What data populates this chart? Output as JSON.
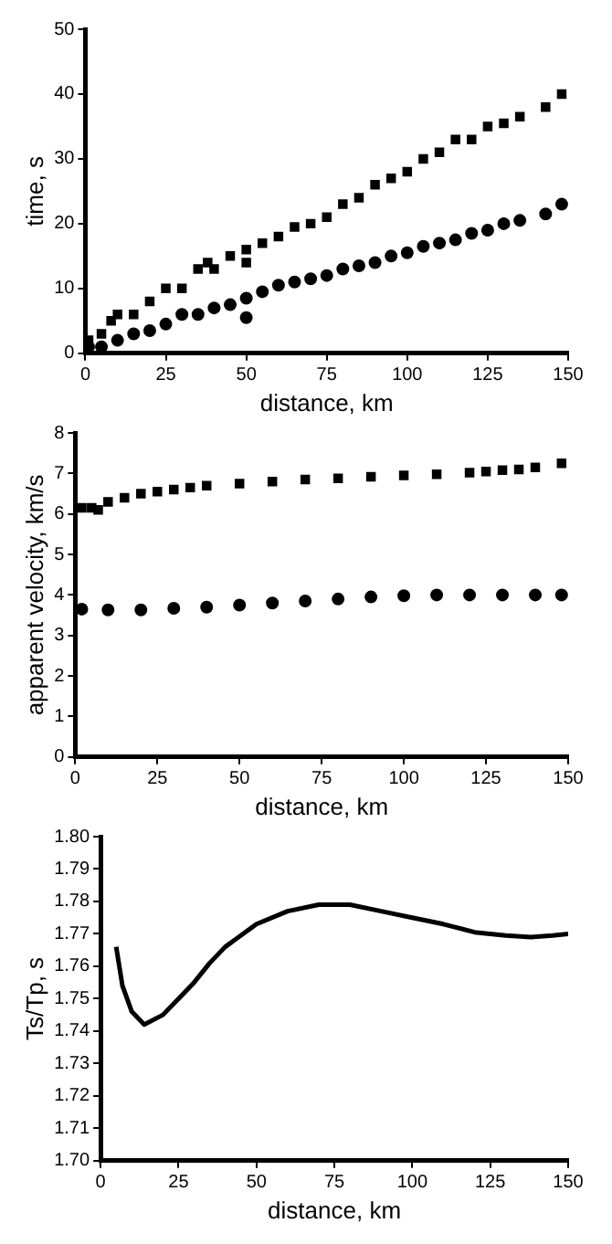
{
  "chart_data": [
    {
      "type": "scatter",
      "xlabel": "distance, km",
      "ylabel": "time, s",
      "xlim": [
        0,
        150
      ],
      "xticks": [
        0,
        25,
        50,
        75,
        100,
        125,
        150
      ],
      "ylim": [
        0,
        50
      ],
      "yticks": [
        0,
        10,
        20,
        30,
        40,
        50
      ],
      "grid": false,
      "legend": false,
      "series": [
        {
          "color": "#000000",
          "marker": "square",
          "x": [
            1,
            5,
            8,
            10,
            15,
            20,
            25,
            30,
            35,
            38,
            40,
            45,
            50,
            50,
            55,
            60,
            65,
            70,
            75,
            80,
            85,
            90,
            95,
            100,
            105,
            110,
            115,
            120,
            125,
            130,
            135,
            143,
            148
          ],
          "values": [
            2,
            3,
            5,
            6,
            6,
            8,
            10,
            10,
            13,
            14,
            13,
            15,
            16,
            14,
            17,
            18,
            19.5,
            20,
            21,
            23,
            24,
            26,
            27,
            28,
            30,
            31,
            33,
            33,
            35,
            35.5,
            36.5,
            38,
            40
          ]
        },
        {
          "color": "#000000",
          "marker": "circle",
          "x": [
            1,
            5,
            10,
            15,
            20,
            25,
            30,
            35,
            40,
            45,
            50,
            50,
            55,
            60,
            65,
            70,
            75,
            80,
            85,
            90,
            95,
            100,
            105,
            110,
            115,
            120,
            125,
            130,
            135,
            143,
            148
          ],
          "values": [
            1,
            1,
            2,
            3,
            3.5,
            4.5,
            6,
            6,
            7,
            7.5,
            8.5,
            5.5,
            9.5,
            10.5,
            11,
            11.5,
            12,
            13,
            13.5,
            14,
            15,
            15.5,
            16.5,
            17,
            17.5,
            18.5,
            19,
            20,
            20.5,
            21.5,
            23
          ]
        }
      ]
    },
    {
      "type": "scatter",
      "xlabel": "distance, km",
      "ylabel": "apparent velocity, km/s",
      "xlim": [
        0,
        150
      ],
      "xticks": [
        0,
        25,
        50,
        75,
        100,
        125,
        150
      ],
      "ylim": [
        0,
        8
      ],
      "yticks": [
        0,
        1,
        2,
        3,
        4,
        5,
        6,
        7,
        8
      ],
      "grid": false,
      "legend": false,
      "series": [
        {
          "color": "#000000",
          "marker": "square",
          "x": [
            2,
            5,
            7,
            10,
            15,
            20,
            25,
            30,
            35,
            40,
            50,
            60,
            70,
            80,
            90,
            100,
            110,
            120,
            125,
            130,
            135,
            140,
            148
          ],
          "values": [
            6.15,
            6.15,
            6.1,
            6.3,
            6.4,
            6.5,
            6.55,
            6.6,
            6.65,
            6.7,
            6.75,
            6.8,
            6.85,
            6.88,
            6.92,
            6.95,
            6.98,
            7.02,
            7.05,
            7.08,
            7.1,
            7.15,
            7.25
          ]
        },
        {
          "color": "#000000",
          "marker": "circle",
          "x": [
            2,
            10,
            20,
            30,
            40,
            50,
            60,
            70,
            80,
            90,
            100,
            110,
            120,
            130,
            140,
            148
          ],
          "values": [
            3.65,
            3.63,
            3.63,
            3.67,
            3.7,
            3.75,
            3.8,
            3.85,
            3.9,
            3.95,
            3.98,
            4.0,
            4.0,
            4.0,
            4.0,
            4.0
          ]
        }
      ]
    },
    {
      "type": "line",
      "xlabel": "distance, km",
      "ylabel": "Ts/Tp, s",
      "xlim": [
        0,
        150
      ],
      "xticks": [
        0,
        25,
        50,
        75,
        100,
        125,
        150
      ],
      "ylim": [
        1.7,
        1.8
      ],
      "yticks": [
        {
          "value": 1.7,
          "label": "1.70"
        },
        {
          "value": 1.71,
          "label": "1.71"
        },
        {
          "value": 1.72,
          "label": "1.72"
        },
        {
          "value": 1.73,
          "label": "1.73"
        },
        {
          "value": 1.74,
          "label": "1.74"
        },
        {
          "value": 1.75,
          "label": "1.75"
        },
        {
          "value": 1.76,
          "label": "1.76"
        },
        {
          "value": 1.77,
          "label": "1.77"
        },
        {
          "value": 1.78,
          "label": "1.78"
        },
        {
          "value": 1.79,
          "label": "1.79"
        },
        {
          "value": 1.8,
          "label": "1.80"
        }
      ],
      "grid": false,
      "legend": false,
      "marker": "none",
      "line_style": "solid",
      "series": [
        {
          "color": "#000000",
          "x": [
            5,
            7,
            10,
            14,
            20,
            25,
            30,
            35,
            40,
            50,
            60,
            70,
            80,
            90,
            100,
            110,
            120,
            130,
            138,
            145,
            150
          ],
          "values": [
            1.766,
            1.754,
            1.746,
            1.742,
            1.745,
            1.75,
            1.755,
            1.761,
            1.766,
            1.773,
            1.777,
            1.779,
            1.779,
            1.777,
            1.775,
            1.773,
            1.7705,
            1.7695,
            1.769,
            1.7695,
            1.77
          ]
        }
      ]
    }
  ]
}
